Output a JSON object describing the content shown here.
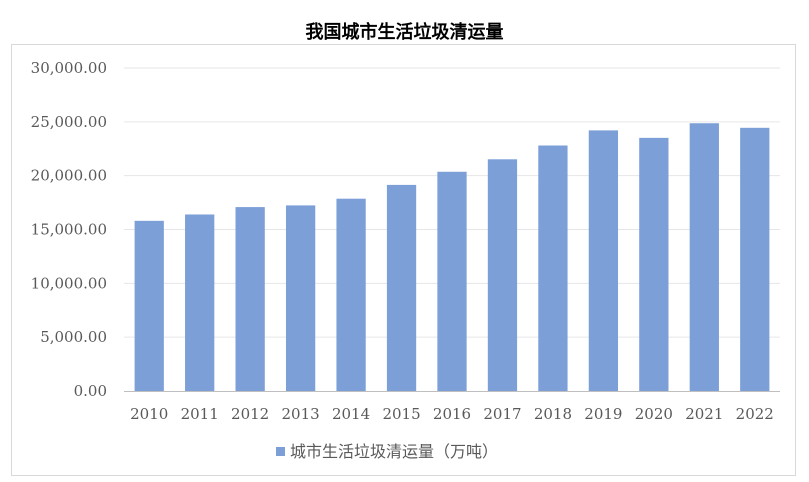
{
  "chart_data": {
    "type": "bar",
    "title": "我国城市生活垃圾清运量",
    "categories": [
      "2010",
      "2011",
      "2012",
      "2013",
      "2014",
      "2015",
      "2016",
      "2017",
      "2018",
      "2019",
      "2020",
      "2021",
      "2022"
    ],
    "series": [
      {
        "name": "城市生活垃圾清运量（万吨）",
        "values": [
          15805,
          16395,
          17081,
          17239,
          17860,
          19142,
          20362,
          21521,
          22802,
          24206,
          23512,
          24869,
          24445
        ]
      }
    ],
    "y_ticks": [
      "0.00",
      "5,000.00",
      "10,000.00",
      "15,000.00",
      "20,000.00",
      "25,000.00",
      "30,000.00"
    ],
    "ylim": [
      0,
      30000
    ],
    "grid": true,
    "legend": "bottom",
    "colors": {
      "bar": "#7c9fd8",
      "grid": "#e6e6e6",
      "axis": "#bfbfbf",
      "text": "#595959"
    }
  }
}
